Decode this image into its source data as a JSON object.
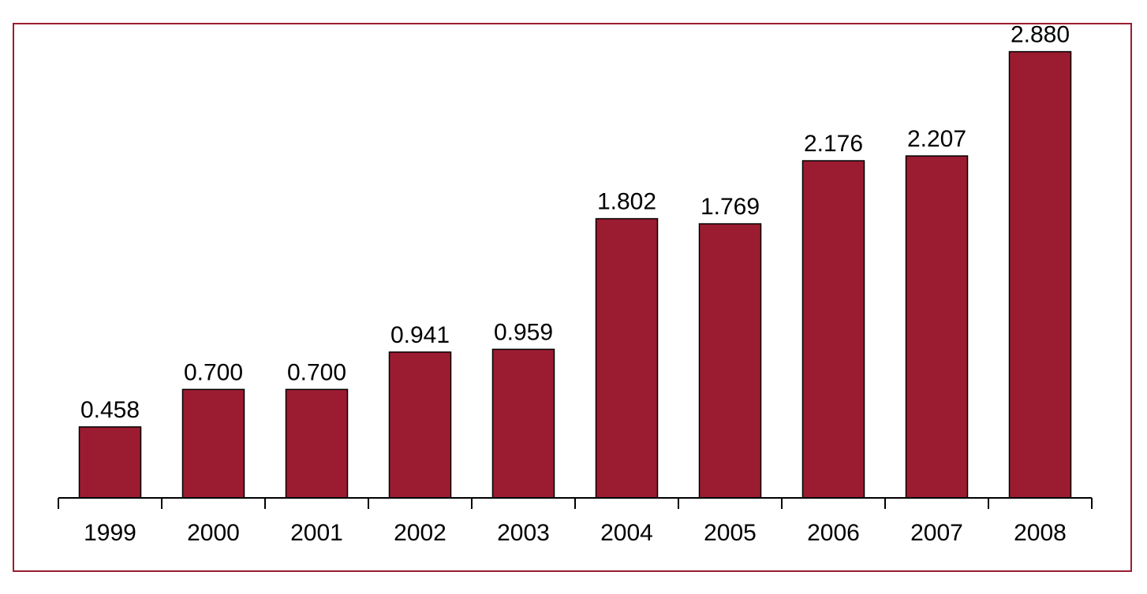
{
  "chart_data": {
    "type": "bar",
    "categories": [
      "1999",
      "2000",
      "2001",
      "2002",
      "2003",
      "2004",
      "2005",
      "2006",
      "2007",
      "2008"
    ],
    "values": [
      0.458,
      0.7,
      0.7,
      0.941,
      0.959,
      1.802,
      1.769,
      2.176,
      2.207,
      2.88
    ],
    "value_labels": [
      "0.458",
      "0.700",
      "0.700",
      "0.941",
      "0.959",
      "1.802",
      "1.769",
      "2.176",
      "2.207",
      "2.880"
    ],
    "title": "",
    "xlabel": "",
    "ylabel": "",
    "ylim": [
      0,
      3.0
    ],
    "grid": false,
    "legend": "none",
    "colors": {
      "bar": "#9b1c31",
      "bar_stroke": "#000000",
      "frame": "#9b1c31",
      "axis": "#000000"
    }
  }
}
